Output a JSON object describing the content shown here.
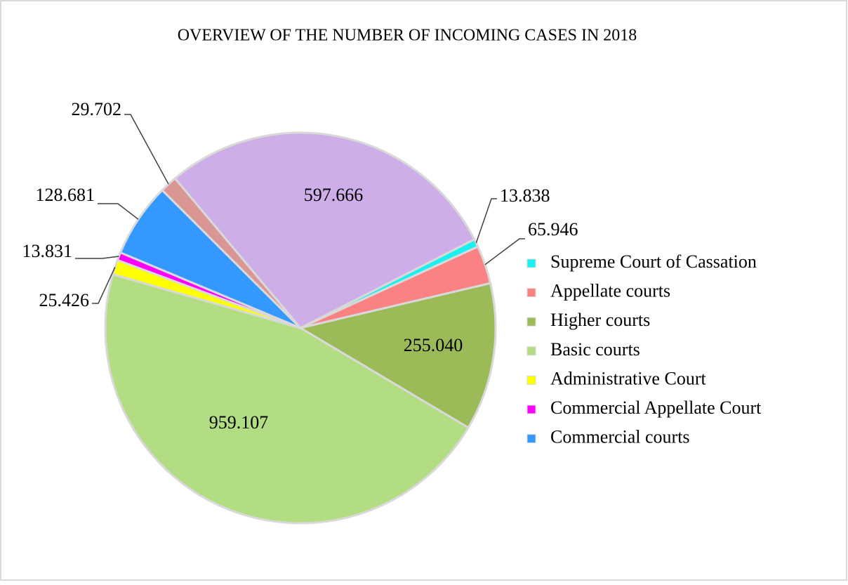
{
  "chart_data": {
    "type": "pie",
    "title": "OVERVIEW OF THE NUMBER OF INCOMING CASES IN 2018",
    "categories": [
      "Supreme Court of Cassation",
      "Appellate courts",
      "Higher courts",
      "Basic courts",
      "Administrative Court",
      "Commercial Appellate Court",
      "Commercial courts",
      null,
      null
    ],
    "values": [
      13838,
      65946,
      255040,
      959107,
      25426,
      13831,
      128681,
      29702,
      597666
    ],
    "value_labels": [
      "13.838",
      "65.946",
      "255.040",
      "959.107",
      "25.426",
      "13.831",
      "128.681",
      "29.702",
      "597.666"
    ],
    "colors": [
      "#19f0f0",
      "#fb8282",
      "#9bbb59",
      "#b2dd82",
      "#ffff00",
      "#ff00ff",
      "#3399ff",
      "#d99694",
      "#cdaee8"
    ],
    "legend": "right"
  }
}
